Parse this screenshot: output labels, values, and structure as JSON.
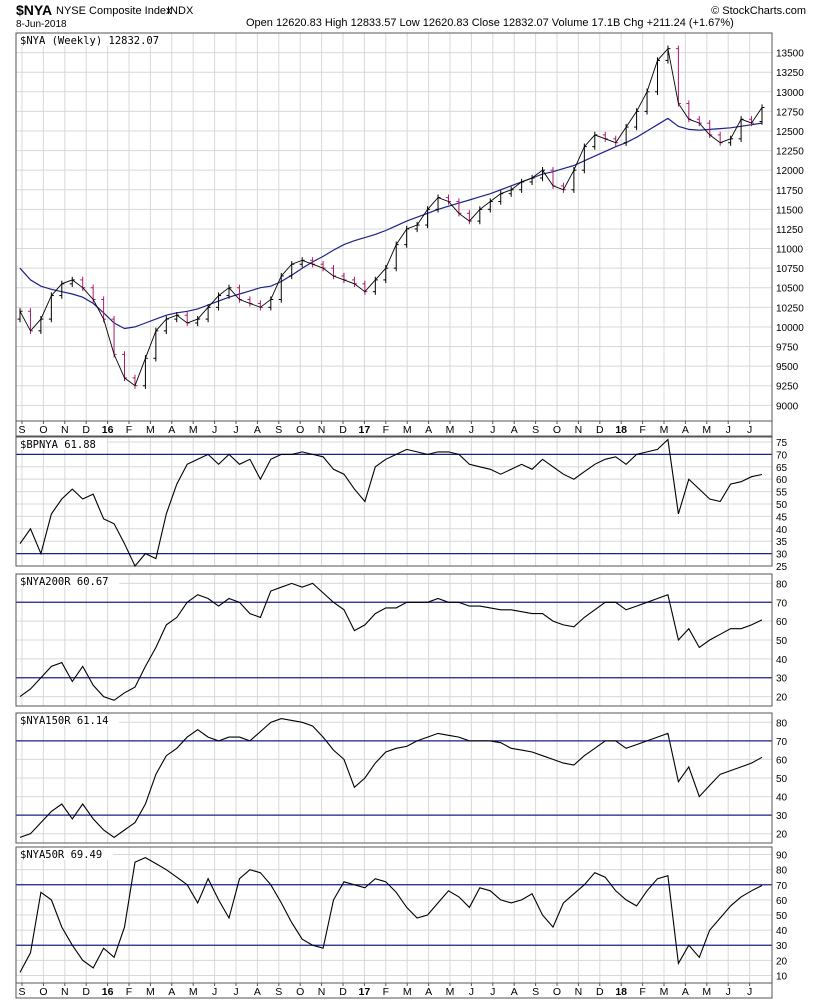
{
  "header": {
    "symbol": "$NYA",
    "name": "NYSE Composite Index",
    "exchange": "INDX",
    "date": "8-Jun-2018",
    "ohlc": "Open 12620.83  High 12833.57  Low 12620.83  Close 12832.07  Volume 17.1B  Chg +211.24 (+1.67%)",
    "brand": "© StockCharts.com"
  },
  "colors": {
    "price": "#000000",
    "price_down": "#b0196e",
    "ma": "#1c2287",
    "band": "#1c2287",
    "grid": "#d8d8d8",
    "frame": "#555555"
  },
  "x_axis": {
    "labels": [
      "S",
      "O",
      "N",
      "D",
      "16",
      "F",
      "M",
      "A",
      "M",
      "J",
      "J",
      "A",
      "S",
      "O",
      "N",
      "D",
      "17",
      "F",
      "M",
      "A",
      "M",
      "J",
      "J",
      "A",
      "S",
      "O",
      "N",
      "D",
      "18",
      "F",
      "M",
      "A",
      "M",
      "J",
      "J"
    ],
    "bold": [
      "16",
      "17",
      "18"
    ]
  },
  "chart_data": [
    {
      "type": "ohlc",
      "title": "$NYA (Weekly) 12832.07",
      "ylim": [
        8800,
        13750
      ],
      "yticks": [
        9000,
        9250,
        9500,
        9750,
        10000,
        10250,
        10500,
        10750,
        11000,
        11250,
        11500,
        11750,
        12000,
        12250,
        12500,
        12750,
        13000,
        13250,
        13500
      ],
      "close": [
        10200,
        9950,
        10100,
        10400,
        10550,
        10600,
        10500,
        10350,
        10100,
        9650,
        9350,
        9250,
        9600,
        9950,
        10100,
        10150,
        10050,
        10100,
        10250,
        10400,
        10500,
        10350,
        10300,
        10250,
        10350,
        10650,
        10800,
        10850,
        10800,
        10750,
        10650,
        10600,
        10550,
        10450,
        10600,
        10750,
        11050,
        11250,
        11300,
        11500,
        11650,
        11600,
        11450,
        11350,
        11500,
        11600,
        11700,
        11750,
        11850,
        11900,
        12000,
        11800,
        11750,
        12000,
        12300,
        12450,
        12400,
        12350,
        12550,
        12750,
        13000,
        13400,
        13550,
        12850,
        12650,
        12600,
        12450,
        12350,
        12400,
        12650,
        12600,
        12800
      ],
      "open": [
        10100,
        10200,
        9950,
        10100,
        10400,
        10550,
        10600,
        10500,
        10350,
        10100,
        9650,
        9350,
        9250,
        9600,
        9950,
        10100,
        10150,
        10050,
        10100,
        10250,
        10400,
        10500,
        10350,
        10300,
        10250,
        10350,
        10650,
        10800,
        10850,
        10800,
        10750,
        10650,
        10600,
        10550,
        10450,
        10600,
        10750,
        11050,
        11250,
        11300,
        11500,
        11650,
        11600,
        11450,
        11350,
        11500,
        11600,
        11700,
        11750,
        11850,
        11900,
        12000,
        11800,
        11750,
        12000,
        12300,
        12450,
        12400,
        12350,
        12550,
        12750,
        13000,
        13400,
        13550,
        12850,
        12650,
        12600,
        12450,
        12350,
        12400,
        12650,
        12620
      ],
      "ma": [
        10750,
        10600,
        10520,
        10480,
        10450,
        10420,
        10380,
        10300,
        10180,
        10050,
        9980,
        10000,
        10050,
        10100,
        10150,
        10180,
        10200,
        10230,
        10280,
        10330,
        10380,
        10420,
        10460,
        10500,
        10520,
        10580,
        10660,
        10750,
        10830,
        10900,
        10980,
        11050,
        11100,
        11140,
        11180,
        11230,
        11290,
        11350,
        11400,
        11450,
        11500,
        11540,
        11580,
        11620,
        11660,
        11700,
        11750,
        11800,
        11850,
        11900,
        11950,
        11980,
        12020,
        12060,
        12120,
        12180,
        12240,
        12300,
        12350,
        12420,
        12500,
        12580,
        12660,
        12560,
        12520,
        12510,
        12520,
        12530,
        12540,
        12560,
        12580,
        12600
      ]
    },
    {
      "type": "line",
      "title": "$BPNYA 61.88",
      "ylim": [
        25,
        77
      ],
      "yticks": [
        25,
        30,
        35,
        40,
        45,
        50,
        55,
        60,
        65,
        70,
        75
      ],
      "bands": [
        30,
        70
      ],
      "values": [
        34,
        40,
        30,
        46,
        52,
        56,
        52,
        54,
        44,
        42,
        34,
        25,
        30,
        28,
        46,
        58,
        66,
        68,
        70,
        66,
        70,
        66,
        68,
        60,
        68,
        70,
        70,
        71,
        70,
        69,
        64,
        62,
        56,
        51,
        65,
        68,
        70,
        72,
        71,
        70,
        71,
        71,
        70,
        66,
        65,
        64,
        62,
        64,
        66,
        64,
        68,
        65,
        62,
        60,
        63,
        66,
        68,
        69,
        66,
        70,
        71,
        72,
        76,
        46,
        60,
        56,
        52,
        51,
        58,
        59,
        61,
        61.88
      ]
    },
    {
      "type": "line",
      "title": "$NYA200R 60.67",
      "ylim": [
        15,
        85
      ],
      "yticks": [
        20,
        30,
        40,
        50,
        60,
        70,
        80
      ],
      "bands": [
        30,
        70
      ],
      "values": [
        20,
        24,
        30,
        36,
        38,
        28,
        36,
        26,
        20,
        18,
        22,
        25,
        36,
        46,
        58,
        62,
        70,
        74,
        72,
        68,
        72,
        70,
        64,
        62,
        76,
        78,
        80,
        78,
        80,
        75,
        70,
        66,
        55,
        58,
        64,
        67,
        67,
        70,
        70,
        70,
        72,
        70,
        70,
        68,
        68,
        67,
        66,
        66,
        65,
        64,
        64,
        60,
        58,
        57,
        62,
        66,
        70,
        70,
        66,
        68,
        70,
        72,
        74,
        50,
        56,
        46,
        50,
        53,
        56,
        56,
        58,
        60.67
      ]
    },
    {
      "type": "line",
      "title": "$NYA150R 61.14",
      "ylim": [
        15,
        85
      ],
      "yticks": [
        20,
        30,
        40,
        50,
        60,
        70,
        80
      ],
      "bands": [
        30,
        70
      ],
      "values": [
        18,
        20,
        26,
        32,
        36,
        28,
        36,
        28,
        22,
        18,
        22,
        26,
        36,
        52,
        62,
        66,
        72,
        76,
        72,
        70,
        72,
        72,
        70,
        75,
        80,
        82,
        81,
        80,
        78,
        72,
        65,
        60,
        45,
        50,
        58,
        64,
        66,
        67,
        70,
        72,
        74,
        73,
        72,
        70,
        70,
        70,
        69,
        66,
        65,
        64,
        62,
        60,
        58,
        57,
        62,
        66,
        70,
        70,
        66,
        68,
        70,
        72,
        74,
        48,
        56,
        40,
        46,
        52,
        54,
        56,
        58,
        61.14
      ]
    },
    {
      "type": "line",
      "title": "$NYA50R 69.49",
      "ylim": [
        5,
        95
      ],
      "yticks": [
        10,
        20,
        30,
        40,
        50,
        60,
        70,
        80,
        90
      ],
      "bands": [
        30,
        70
      ],
      "values": [
        12,
        25,
        65,
        60,
        42,
        30,
        20,
        15,
        28,
        22,
        42,
        85,
        88,
        84,
        80,
        75,
        70,
        58,
        74,
        60,
        48,
        74,
        80,
        78,
        70,
        58,
        45,
        34,
        30,
        28,
        60,
        72,
        70,
        68,
        74,
        72,
        65,
        55,
        48,
        50,
        58,
        66,
        62,
        55,
        68,
        66,
        60,
        58,
        60,
        64,
        50,
        42,
        58,
        64,
        70,
        78,
        75,
        66,
        60,
        56,
        66,
        74,
        76,
        18,
        30,
        22,
        40,
        48,
        56,
        62,
        66,
        69.49
      ]
    }
  ]
}
